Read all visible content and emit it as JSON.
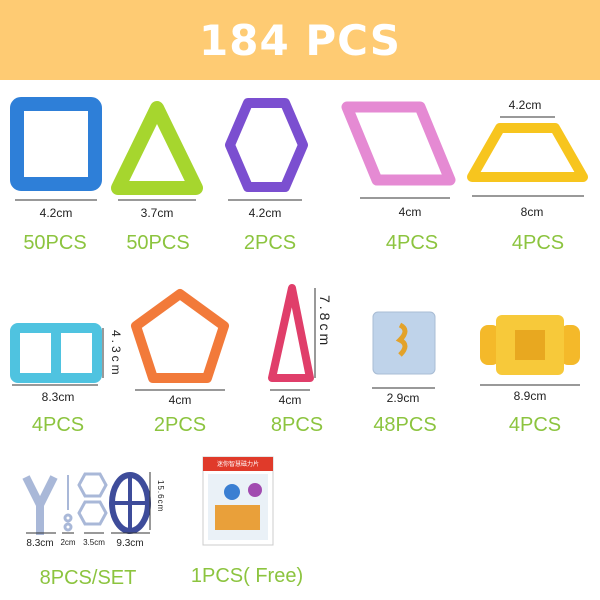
{
  "header": {
    "title": "184 PCS",
    "color": "#FECB73"
  },
  "accent_color": "#8CC43F",
  "pieces": [
    {
      "shape": "square",
      "color": "#2E7FD8",
      "size": "4.2cm",
      "count": "50PCS"
    },
    {
      "shape": "triangle",
      "color": "#A6D62E",
      "size": "3.7cm",
      "count": "50PCS"
    },
    {
      "shape": "hexagon",
      "color": "#7B4FD0",
      "size": "4.2cm",
      "count": "2PCS"
    },
    {
      "shape": "rhombus",
      "color": "#E58AD3",
      "size": "4cm",
      "count": "4PCS"
    },
    {
      "shape": "trapezoid",
      "color": "#F7C51E",
      "size_top": "4.2cm",
      "size": "8cm",
      "count": "4PCS"
    },
    {
      "shape": "double-rectangle",
      "color": "#4FC3E0",
      "size_side": "4.3cm",
      "size": "8.3cm",
      "count": "4PCS"
    },
    {
      "shape": "pentagon",
      "color": "#F27A3A",
      "size": "4cm",
      "count": "2PCS"
    },
    {
      "shape": "tall-triangle",
      "color": "#E03E6A",
      "size_side": "7.8cm",
      "size": "4cm",
      "count": "8PCS"
    },
    {
      "shape": "cube",
      "color": "#BFD3EA",
      "size": "2.9cm",
      "count": "48PCS"
    },
    {
      "shape": "connector",
      "color": "#F4B92A",
      "size": "8.9cm",
      "count": "4PCS"
    }
  ],
  "accessories": {
    "sizes": [
      "8.3cm",
      "2cm",
      "3.5cm",
      "9.3cm"
    ],
    "height": "15.6cm",
    "count": "8PCS/SET"
  },
  "booklet": {
    "title": "迷你智慧磁力片",
    "count": "1PCS( Free)"
  }
}
